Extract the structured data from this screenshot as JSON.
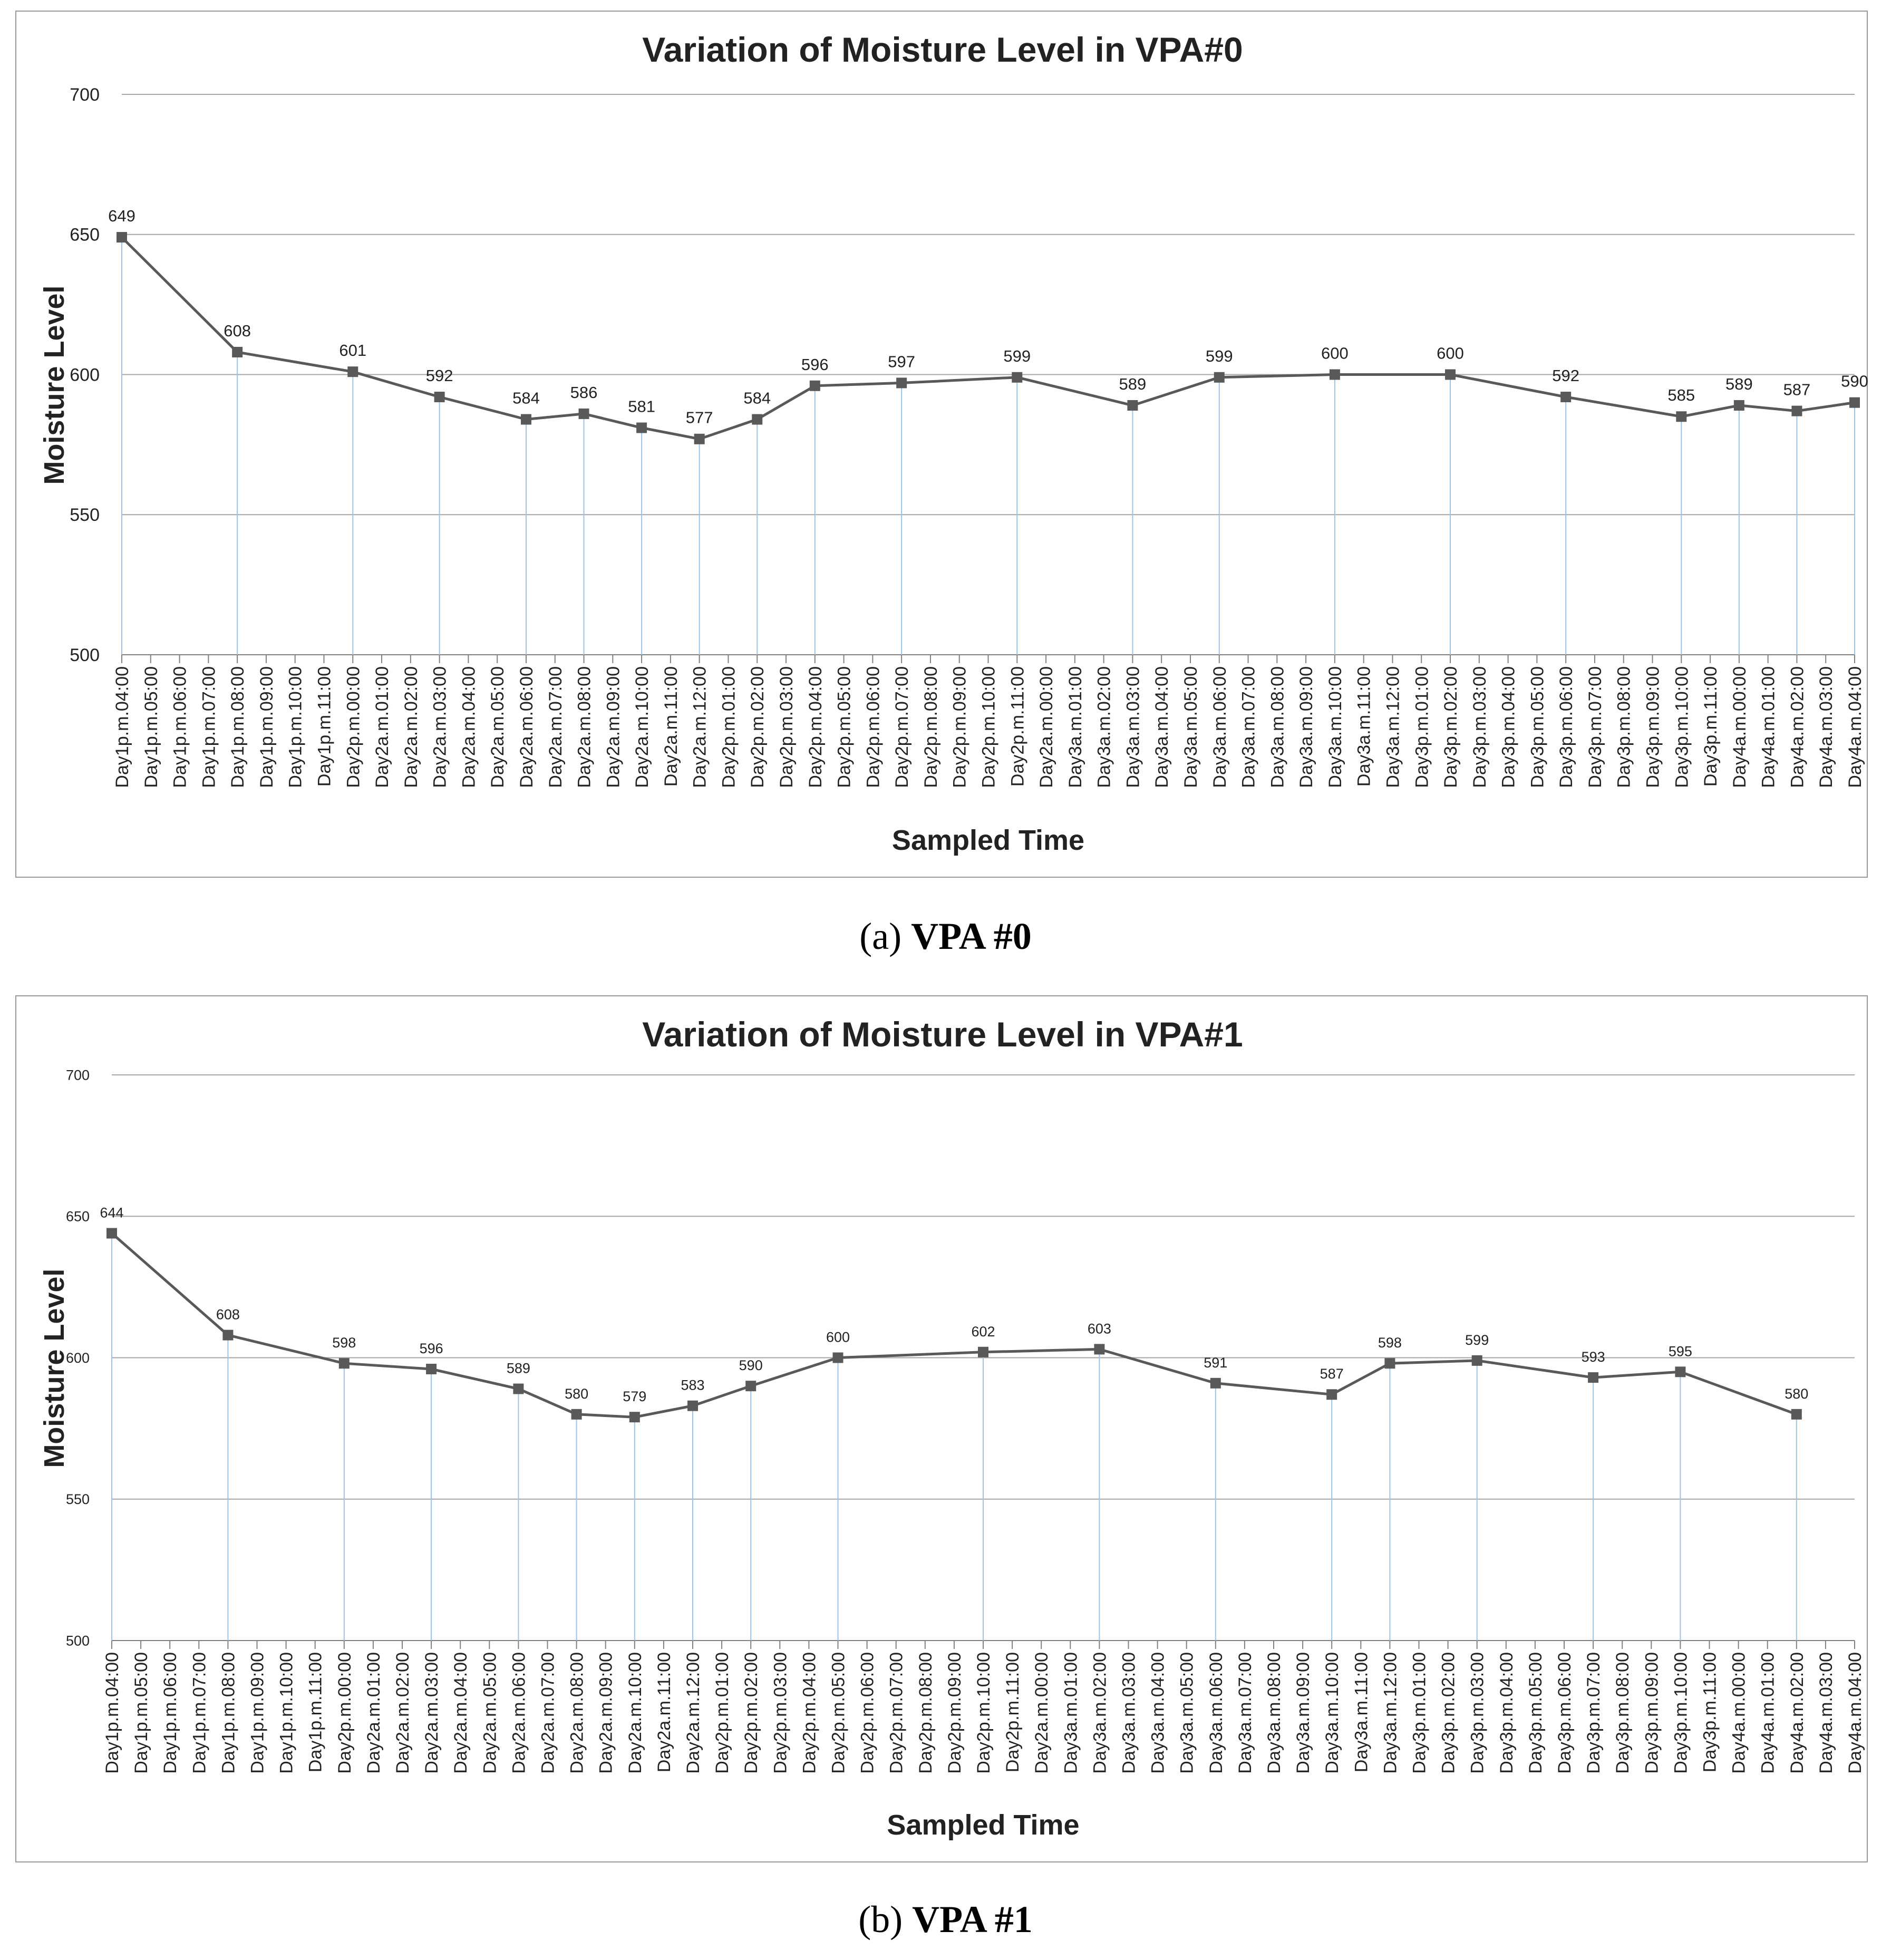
{
  "chart_data": [
    {
      "type": "line",
      "title": "Variation of Moisture Level in VPA#0",
      "xlabel": "Sampled Time",
      "ylabel": "Moisture  Level",
      "ylim": [
        500,
        700
      ],
      "yticks": [
        500,
        550,
        600,
        650,
        700
      ],
      "categories": [
        "Day1p.m.04:00",
        "Day1p.m.05:00",
        "Day1p.m.06:00",
        "Day1p.m.07:00",
        "Day1p.m.08:00",
        "Day1p.m.09:00",
        "Day1p.m.10:00",
        "Day1p.m.11:00",
        "Day2p.m.00:00",
        "Day2a.m.01:00",
        "Day2a.m.02:00",
        "Day2a.m.03:00",
        "Day2a.m.04:00",
        "Day2a.m.05:00",
        "Day2a.m.06:00",
        "Day2a.m.07:00",
        "Day2a.m.08:00",
        "Day2a.m.09:00",
        "Day2a.m.10:00",
        "Day2a.m.11:00",
        "Day2a.m.12:00",
        "Day2p.m.01:00",
        "Day2p.m.02:00",
        "Day2p.m.03:00",
        "Day2p.m.04:00",
        "Day2p.m.05:00",
        "Day2p.m.06:00",
        "Day2p.m.07:00",
        "Day2p.m.08:00",
        "Day2p.m.09:00",
        "Day2p.m.10:00",
        "Day2p.m.11:00",
        "Day2a.m.00:00",
        "Day3a.m.01:00",
        "Day3a.m.02:00",
        "Day3a.m.03:00",
        "Day3a.m.04:00",
        "Day3a.m.05:00",
        "Day3a.m.06:00",
        "Day3a.m.07:00",
        "Day3a.m.08:00",
        "Day3a.m.09:00",
        "Day3a.m.10:00",
        "Day3a.m.11:00",
        "Day3a.m.12:00",
        "Day3p.m.01:00",
        "Day3p.m.02:00",
        "Day3p.m.03:00",
        "Day3p.m.04:00",
        "Day3p.m.05:00",
        "Day3p.m.06:00",
        "Day3p.m.07:00",
        "Day3p.m.08:00",
        "Day3p.m.09:00",
        "Day3p.m.10:00",
        "Day3p.m.11:00",
        "Day4a.m.00:00",
        "Day4a.m.01:00",
        "Day4a.m.02:00",
        "Day4a.m.03:00",
        "Day4a.m.04:00"
      ],
      "series": [
        {
          "name": "VPA#0",
          "points": [
            [
              0,
              649
            ],
            [
              4,
              608
            ],
            [
              8,
              601
            ],
            [
              11,
              592
            ],
            [
              14,
              584
            ],
            [
              16,
              586
            ],
            [
              18,
              581
            ],
            [
              20,
              577
            ],
            [
              22,
              584
            ],
            [
              24,
              596
            ],
            [
              27,
              597
            ],
            [
              31,
              599
            ],
            [
              35,
              589
            ],
            [
              38,
              599
            ],
            [
              42,
              600
            ],
            [
              46,
              600
            ],
            [
              50,
              592
            ],
            [
              54,
              585
            ],
            [
              56,
              589
            ],
            [
              58,
              587
            ],
            [
              60,
              590
            ]
          ]
        }
      ]
    },
    {
      "type": "line",
      "title": "Variation of Moisture Level in VPA#1",
      "xlabel": "Sampled Time",
      "ylabel": "Moisture  Level",
      "ylim": [
        500,
        700
      ],
      "yticks": [
        500,
        550,
        600,
        650,
        700
      ],
      "categories": [
        "Day1p.m.04:00",
        "Day1p.m.05:00",
        "Day1p.m.06:00",
        "Day1p.m.07:00",
        "Day1p.m.08:00",
        "Day1p.m.09:00",
        "Day1p.m.10:00",
        "Day1p.m.11:00",
        "Day2p.m.00:00",
        "Day2a.m.01:00",
        "Day2a.m.02:00",
        "Day2a.m.03:00",
        "Day2a.m.04:00",
        "Day2a.m.05:00",
        "Day2a.m.06:00",
        "Day2a.m.07:00",
        "Day2a.m.08:00",
        "Day2a.m.09:00",
        "Day2a.m.10:00",
        "Day2a.m.11:00",
        "Day2a.m.12:00",
        "Day2p.m.01:00",
        "Day2p.m.02:00",
        "Day2p.m.03:00",
        "Day2p.m.04:00",
        "Day2p.m.05:00",
        "Day2p.m.06:00",
        "Day2p.m.07:00",
        "Day2p.m.08:00",
        "Day2p.m.09:00",
        "Day2p.m.10:00",
        "Day2p.m.11:00",
        "Day2a.m.00:00",
        "Day3a.m.01:00",
        "Day3a.m.02:00",
        "Day3a.m.03:00",
        "Day3a.m.04:00",
        "Day3a.m.05:00",
        "Day3a.m.06:00",
        "Day3a.m.07:00",
        "Day3a.m.08:00",
        "Day3a.m.09:00",
        "Day3a.m.10:00",
        "Day3a.m.11:00",
        "Day3a.m.12:00",
        "Day3p.m.01:00",
        "Day3p.m.02:00",
        "Day3p.m.03:00",
        "Day3p.m.04:00",
        "Day3p.m.05:00",
        "Day3p.m.06:00",
        "Day3p.m.07:00",
        "Day3p.m.08:00",
        "Day3p.m.09:00",
        "Day3p.m.10:00",
        "Day3p.m.11:00",
        "Day4a.m.00:00",
        "Day4a.m.01:00",
        "Day4a.m.02:00",
        "Day4a.m.03:00",
        "Day4a.m.04:00"
      ],
      "series": [
        {
          "name": "VPA#1",
          "points": [
            [
              0,
              644
            ],
            [
              4,
              608
            ],
            [
              8,
              598
            ],
            [
              11,
              596
            ],
            [
              14,
              589
            ],
            [
              16,
              580
            ],
            [
              18,
              579
            ],
            [
              20,
              583
            ],
            [
              22,
              590
            ],
            [
              25,
              600
            ],
            [
              30,
              602
            ],
            [
              34,
              603
            ],
            [
              38,
              591
            ],
            [
              42,
              587
            ],
            [
              44,
              598
            ],
            [
              47,
              599
            ],
            [
              51,
              593
            ],
            [
              54,
              595
            ],
            [
              58,
              580
            ]
          ]
        }
      ]
    }
  ],
  "captions": [
    {
      "prefix": "(a) ",
      "bold": "VPA #0"
    },
    {
      "prefix": "(b) ",
      "bold": "VPA #1"
    }
  ],
  "colors": {
    "line": "#595959",
    "marker": "#595959",
    "drop_line": "#9DC3E6",
    "gridline": "#a6a6a6",
    "axis": "#808080",
    "frame": "#9a9a9a"
  }
}
